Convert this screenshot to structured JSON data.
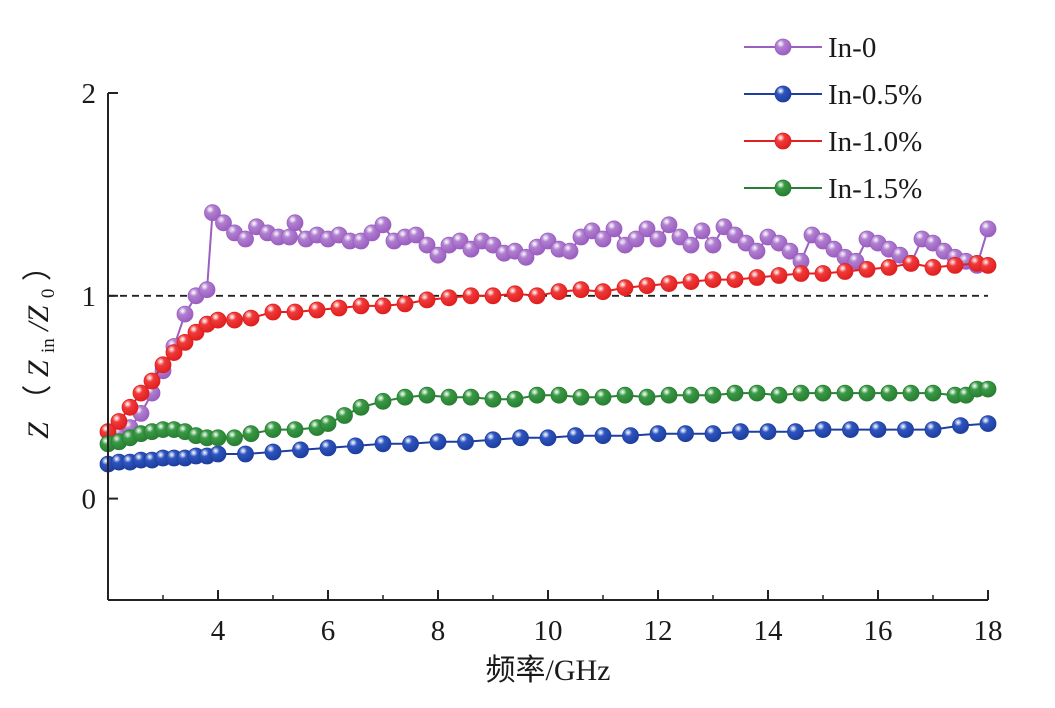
{
  "chart_data": {
    "type": "line",
    "xlabel": "频率/GHz",
    "ylabel": {
      "symbol": "Z",
      "paren_open": "（",
      "z1": "Z",
      "sub1": "in",
      "slash": "/Z",
      "sub2": "0",
      "paren_close": "）"
    },
    "xlim": [
      2.0,
      18.0
    ],
    "ylim": [
      -0.5,
      2.0
    ],
    "xticks": [
      4,
      6,
      8,
      10,
      12,
      14,
      16,
      18
    ],
    "yticks": [
      0,
      1,
      2
    ],
    "reference_line": {
      "y": 1,
      "style": "dashed"
    },
    "grid": false,
    "legend_position": "top-right",
    "series": [
      {
        "name": "In-0",
        "color": "#9b5fc0",
        "marker_color": "#b07fd0",
        "x": [
          2.2,
          2.4,
          2.6,
          2.8,
          3.0,
          3.2,
          3.4,
          3.6,
          3.8,
          3.9,
          4.1,
          4.3,
          4.5,
          4.7,
          4.9,
          5.1,
          5.3,
          5.4,
          5.6,
          5.8,
          6.0,
          6.2,
          6.4,
          6.6,
          6.8,
          7.0,
          7.2,
          7.4,
          7.6,
          7.8,
          8.0,
          8.2,
          8.4,
          8.6,
          8.8,
          9.0,
          9.2,
          9.4,
          9.6,
          9.8,
          10.0,
          10.2,
          10.4,
          10.6,
          10.8,
          11.0,
          11.2,
          11.4,
          11.6,
          11.8,
          12.0,
          12.2,
          12.4,
          12.6,
          12.8,
          13.0,
          13.2,
          13.4,
          13.6,
          13.8,
          14.0,
          14.2,
          14.4,
          14.6,
          14.8,
          15.0,
          15.2,
          15.4,
          15.6,
          15.8,
          16.0,
          16.2,
          16.4,
          16.6,
          16.8,
          17.0,
          17.2,
          17.4,
          17.6,
          17.8,
          18.0
        ],
        "y": [
          0.32,
          0.35,
          0.42,
          0.52,
          0.63,
          0.75,
          0.91,
          1.0,
          1.03,
          1.41,
          1.36,
          1.31,
          1.28,
          1.34,
          1.31,
          1.29,
          1.29,
          1.36,
          1.28,
          1.3,
          1.28,
          1.3,
          1.27,
          1.27,
          1.31,
          1.35,
          1.27,
          1.29,
          1.3,
          1.25,
          1.2,
          1.25,
          1.27,
          1.23,
          1.27,
          1.25,
          1.21,
          1.22,
          1.19,
          1.24,
          1.27,
          1.23,
          1.22,
          1.29,
          1.32,
          1.28,
          1.33,
          1.25,
          1.28,
          1.33,
          1.28,
          1.35,
          1.29,
          1.25,
          1.32,
          1.25,
          1.34,
          1.3,
          1.26,
          1.22,
          1.29,
          1.26,
          1.22,
          1.17,
          1.3,
          1.27,
          1.23,
          1.19,
          1.17,
          1.28,
          1.26,
          1.23,
          1.2,
          1.16,
          1.28,
          1.26,
          1.22,
          1.19,
          1.17,
          1.15,
          1.33
        ]
      },
      {
        "name": "In-0.5%",
        "color": "#1f3f9f",
        "marker_color": "#2d55c0",
        "x": [
          2.0,
          2.2,
          2.4,
          2.6,
          2.8,
          3.0,
          3.2,
          3.4,
          3.6,
          3.8,
          4.0,
          4.5,
          5.0,
          5.5,
          6.0,
          6.5,
          7.0,
          7.5,
          8.0,
          8.5,
          9.0,
          9.5,
          10.0,
          10.5,
          11.0,
          11.5,
          12.0,
          12.5,
          13.0,
          13.5,
          14.0,
          14.5,
          15.0,
          15.5,
          16.0,
          16.5,
          17.0,
          17.5,
          18.0
        ],
        "y": [
          0.17,
          0.18,
          0.18,
          0.19,
          0.19,
          0.2,
          0.2,
          0.2,
          0.21,
          0.21,
          0.22,
          0.22,
          0.23,
          0.24,
          0.25,
          0.26,
          0.27,
          0.27,
          0.28,
          0.28,
          0.29,
          0.3,
          0.3,
          0.31,
          0.31,
          0.31,
          0.32,
          0.32,
          0.32,
          0.33,
          0.33,
          0.33,
          0.34,
          0.34,
          0.34,
          0.34,
          0.34,
          0.36,
          0.37
        ]
      },
      {
        "name": "In-1.0%",
        "color": "#e02020",
        "marker_color": "#f03a3a",
        "x": [
          2.0,
          2.2,
          2.4,
          2.6,
          2.8,
          3.0,
          3.2,
          3.4,
          3.6,
          3.8,
          4.0,
          4.3,
          4.6,
          5.0,
          5.4,
          5.8,
          6.2,
          6.6,
          7.0,
          7.4,
          7.8,
          8.2,
          8.6,
          9.0,
          9.4,
          9.8,
          10.2,
          10.6,
          11.0,
          11.4,
          11.8,
          12.2,
          12.6,
          13.0,
          13.4,
          13.8,
          14.2,
          14.6,
          15.0,
          15.4,
          15.8,
          16.2,
          16.6,
          17.0,
          17.4,
          17.8,
          18.0
        ],
        "y": [
          0.33,
          0.38,
          0.45,
          0.52,
          0.58,
          0.66,
          0.72,
          0.77,
          0.82,
          0.86,
          0.88,
          0.88,
          0.89,
          0.92,
          0.92,
          0.93,
          0.94,
          0.95,
          0.95,
          0.96,
          0.98,
          0.99,
          1.0,
          1.0,
          1.01,
          1.0,
          1.02,
          1.03,
          1.02,
          1.04,
          1.05,
          1.06,
          1.07,
          1.08,
          1.08,
          1.09,
          1.1,
          1.11,
          1.11,
          1.12,
          1.13,
          1.14,
          1.16,
          1.14,
          1.15,
          1.16,
          1.15
        ]
      },
      {
        "name": "In-1.5%",
        "color": "#2a7f34",
        "marker_color": "#389a44",
        "x": [
          2.0,
          2.2,
          2.4,
          2.6,
          2.8,
          3.0,
          3.2,
          3.4,
          3.6,
          3.8,
          4.0,
          4.3,
          4.6,
          5.0,
          5.4,
          5.8,
          6.0,
          6.3,
          6.6,
          7.0,
          7.4,
          7.8,
          8.2,
          8.6,
          9.0,
          9.4,
          9.8,
          10.2,
          10.6,
          11.0,
          11.4,
          11.8,
          12.2,
          12.6,
          13.0,
          13.4,
          13.8,
          14.2,
          14.6,
          15.0,
          15.4,
          15.8,
          16.2,
          16.6,
          17.0,
          17.4,
          17.6,
          17.8,
          18.0
        ],
        "y": [
          0.27,
          0.28,
          0.3,
          0.32,
          0.33,
          0.34,
          0.34,
          0.33,
          0.31,
          0.3,
          0.3,
          0.3,
          0.32,
          0.34,
          0.34,
          0.35,
          0.37,
          0.41,
          0.45,
          0.48,
          0.5,
          0.51,
          0.5,
          0.5,
          0.49,
          0.49,
          0.51,
          0.51,
          0.5,
          0.5,
          0.51,
          0.5,
          0.51,
          0.51,
          0.51,
          0.52,
          0.52,
          0.51,
          0.52,
          0.52,
          0.52,
          0.52,
          0.52,
          0.52,
          0.52,
          0.51,
          0.51,
          0.54,
          0.54
        ]
      }
    ]
  }
}
